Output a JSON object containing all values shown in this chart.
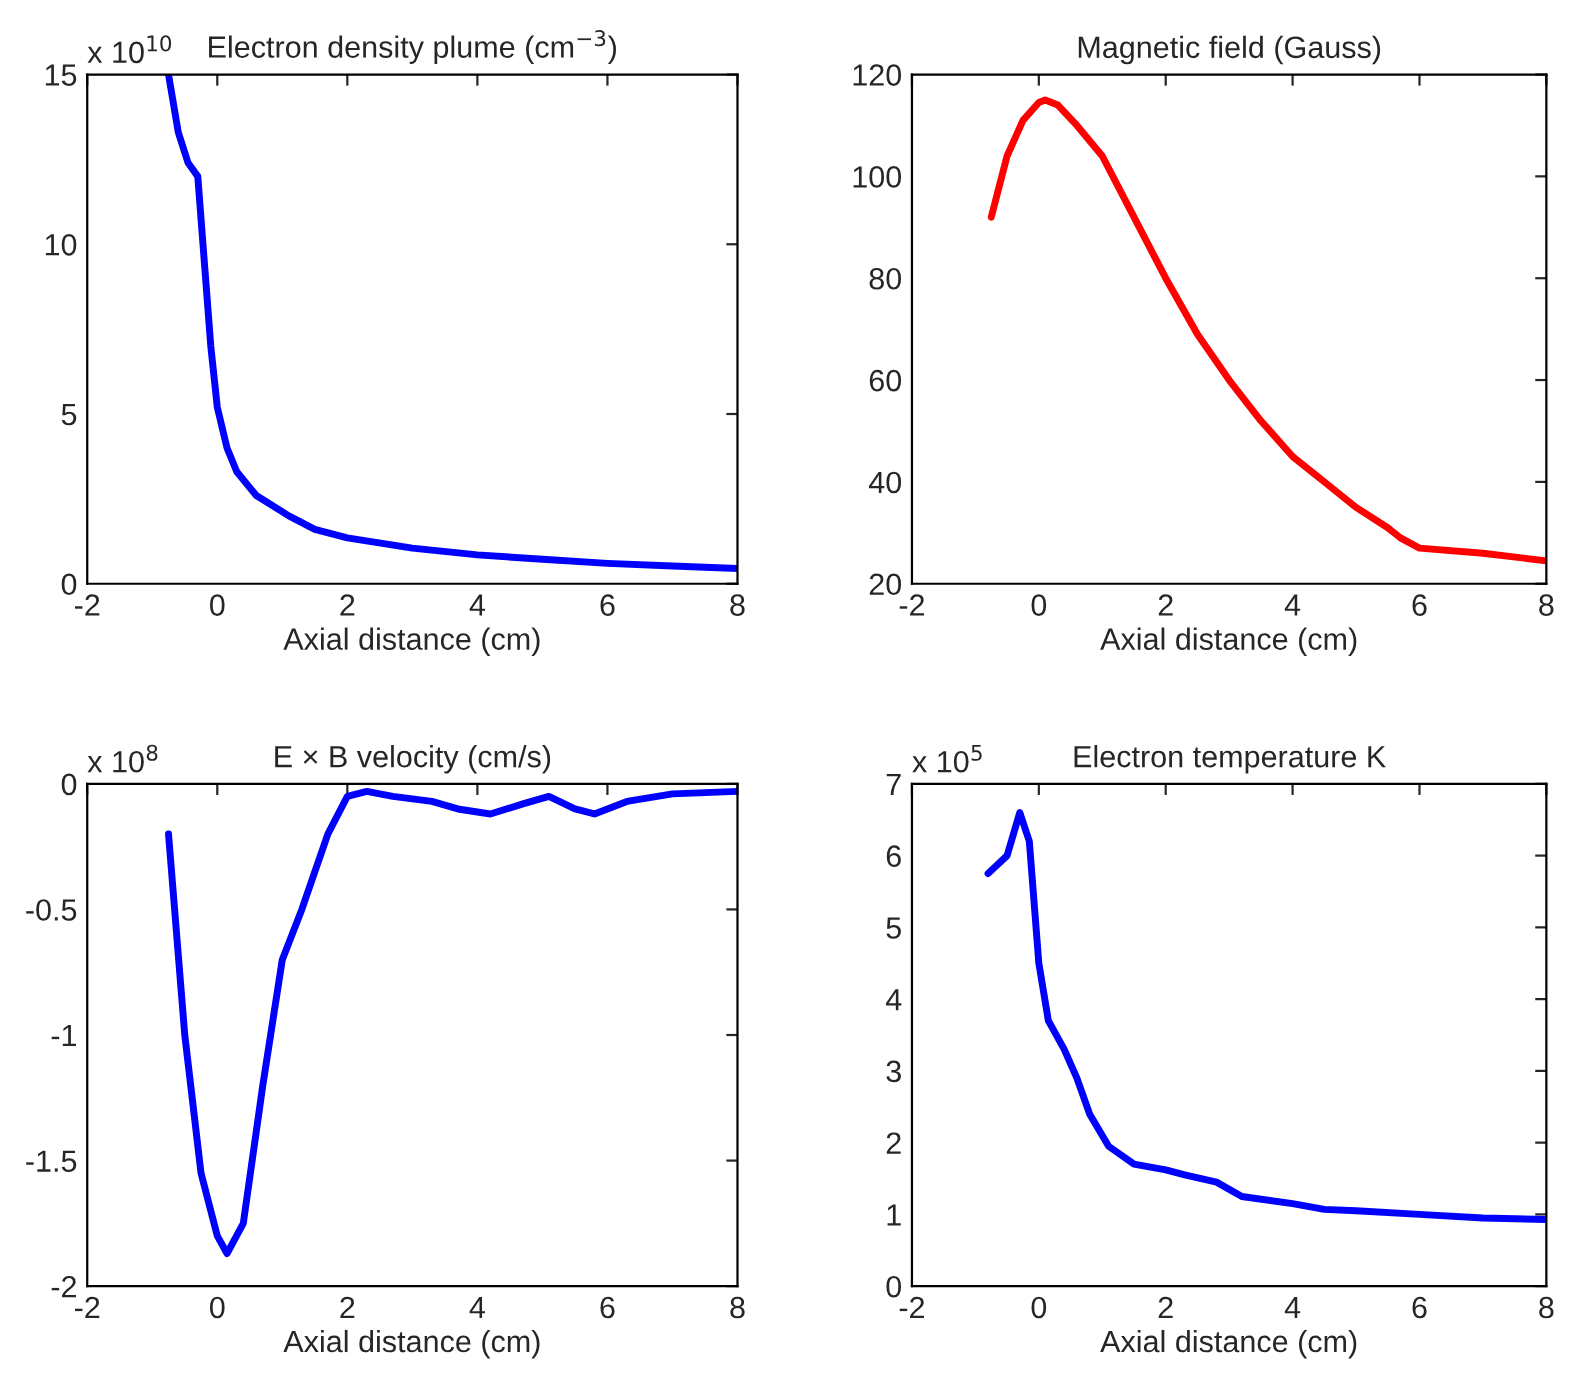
{
  "chart_data": [
    {
      "type": "line",
      "title": "Electron density plume (cm$^{−3}$)",
      "xlabel": "Axial distance (cm)",
      "annotations": [
        "x 10$^{10}$"
      ],
      "xlim": [
        -2,
        8
      ],
      "xticks": [
        -2,
        0,
        2,
        4,
        6,
        8
      ],
      "ylim": [
        0,
        15
      ],
      "yticks": [
        0,
        5,
        10,
        15
      ],
      "grid": false,
      "legend": false,
      "series": [
        {
          "color": "#0000ff",
          "x": [
            -0.75,
            -0.6,
            -0.45,
            -0.3,
            -0.2,
            -0.1,
            0,
            0.15,
            0.3,
            0.6,
            1.1,
            1.5,
            2,
            3,
            4,
            5,
            6,
            7,
            8
          ],
          "values": [
            15,
            13.3,
            12.4,
            12,
            9.5,
            7,
            5.2,
            4,
            3.3,
            2.6,
            2,
            1.6,
            1.35,
            1.05,
            0.85,
            0.72,
            0.6,
            0.52,
            0.45
          ]
        }
      ]
    },
    {
      "type": "line",
      "title": "Magnetic field (Gauss)",
      "xlabel": "Axial distance (cm)",
      "xlim": [
        -2,
        8
      ],
      "xticks": [
        -2,
        0,
        2,
        4,
        6,
        8
      ],
      "ylim": [
        20,
        120
      ],
      "yticks": [
        20,
        40,
        60,
        80,
        100,
        120
      ],
      "grid": false,
      "legend": false,
      "series": [
        {
          "color": "#ff0000",
          "x": [
            -0.75,
            -0.5,
            -0.25,
            0,
            0.1,
            0.3,
            0.6,
            1,
            1.5,
            2,
            2.5,
            3,
            3.5,
            4,
            4.5,
            5,
            5.5,
            5.7,
            6,
            7,
            8
          ],
          "values": [
            92,
            104,
            111,
            114.5,
            115,
            114,
            110,
            104,
            92,
            80,
            69,
            60,
            52,
            45,
            40,
            35,
            31,
            29,
            27,
            26,
            24.5
          ]
        }
      ]
    },
    {
      "type": "line",
      "title": "E × B velocity (cm/s)",
      "xlabel": "Axial distance (cm)",
      "annotations": [
        "x 10$^{8}$"
      ],
      "xlim": [
        -2,
        8
      ],
      "xticks": [
        -2,
        0,
        2,
        4,
        6,
        8
      ],
      "ylim": [
        -2,
        0
      ],
      "yticks": [
        -2,
        -1.5,
        -1,
        -0.5,
        0
      ],
      "grid": false,
      "legend": false,
      "series": [
        {
          "color": "#0000ff",
          "x": [
            -0.75,
            -0.5,
            -0.25,
            0,
            0.15,
            0.4,
            0.7,
            1,
            1.3,
            1.7,
            2,
            2.3,
            2.7,
            3.3,
            3.7,
            4.2,
            4.7,
            5.1,
            5.5,
            5.8,
            6.3,
            7,
            8
          ],
          "values": [
            -0.2,
            -1.0,
            -1.55,
            -1.8,
            -1.87,
            -1.75,
            -1.2,
            -0.7,
            -0.5,
            -0.2,
            -0.05,
            -0.03,
            -0.05,
            -0.07,
            -0.1,
            -0.12,
            -0.08,
            -0.05,
            -0.1,
            -0.12,
            -0.07,
            -0.04,
            -0.03
          ]
        }
      ]
    },
    {
      "type": "line",
      "title": "Electron temperature K",
      "xlabel": "Axial distance (cm)",
      "annotations": [
        "x 10$^{5}$"
      ],
      "xlim": [
        -2,
        8
      ],
      "xticks": [
        -2,
        0,
        2,
        4,
        6,
        8
      ],
      "ylim": [
        0,
        7
      ],
      "yticks": [
        0,
        1,
        2,
        3,
        4,
        5,
        6,
        7
      ],
      "grid": false,
      "legend": false,
      "series": [
        {
          "color": "#0000ff",
          "x": [
            -0.8,
            -0.5,
            -0.3,
            -0.15,
            0,
            0.15,
            0.4,
            0.6,
            0.8,
            1.1,
            1.5,
            2,
            2.3,
            2.8,
            3.2,
            4,
            4.5,
            5,
            6,
            7,
            8
          ],
          "values": [
            5.75,
            6.0,
            6.6,
            6.2,
            4.5,
            3.7,
            3.3,
            2.9,
            2.4,
            1.95,
            1.7,
            1.62,
            1.55,
            1.45,
            1.25,
            1.15,
            1.07,
            1.05,
            1.0,
            0.95,
            0.93
          ]
        }
      ]
    }
  ]
}
